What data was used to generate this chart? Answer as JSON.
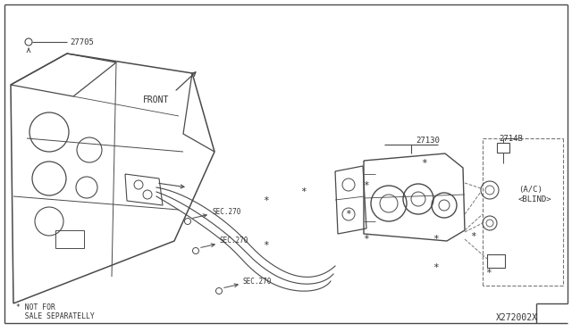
{
  "bg_color": "#ffffff",
  "lc": "#4a4a4a",
  "tc": "#333333",
  "labels": {
    "part_27705": "27705",
    "part_27130": "27130",
    "part_2714B": "2714B",
    "ac_blind": "(A/C)\n<BLIND>",
    "sec270_1": "SEC.270",
    "sec270_2": "SEC.270",
    "sec270_3": "SEC.270",
    "front": "FRONT",
    "not_for_sale": "* NOT FOR\n  SALE SEPARATELLY",
    "diagram_id": "X272002X"
  }
}
